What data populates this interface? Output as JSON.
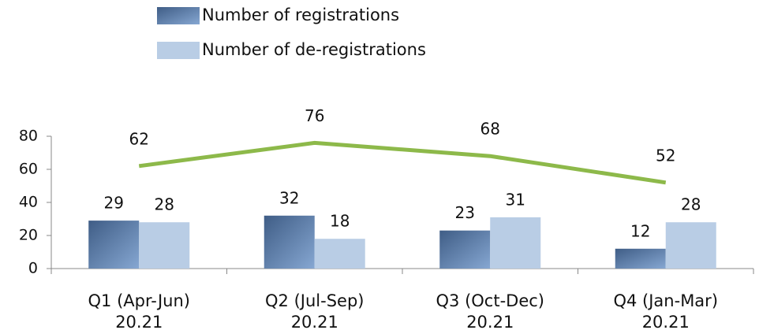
{
  "chart_data": {
    "type": "bar",
    "categories": [
      [
        "Q1 (Apr-Jun)",
        "20.21"
      ],
      [
        "Q2 (Jul-Sep)",
        "20.21"
      ],
      [
        "Q3 (Oct-Dec)",
        "20.21"
      ],
      [
        "Q4 (Jan-Mar)",
        "20.21"
      ]
    ],
    "series": [
      {
        "name": "Number of registrations",
        "color": "#5e7fa8",
        "values": [
          29,
          32,
          23,
          12
        ]
      },
      {
        "name": "Number of de-registrations",
        "color": "#b9cde5",
        "values": [
          28,
          18,
          31,
          28
        ]
      },
      {
        "type": "line",
        "color": "#8db94a",
        "values": [
          62,
          76,
          68,
          52
        ]
      }
    ],
    "ylim": [
      0,
      80
    ],
    "yticks": [
      0,
      20,
      40,
      60,
      80
    ],
    "legend": "top"
  }
}
